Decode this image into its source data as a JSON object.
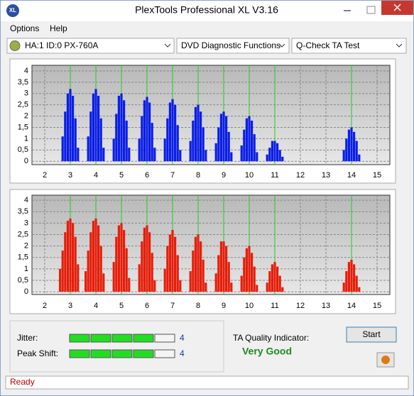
{
  "window": {
    "title": "PlexTools Professional XL V3.16",
    "logo": "XL"
  },
  "menu": [
    "Options",
    "Help"
  ],
  "dropdowns": [
    "HA:1 ID:0  PX-760A",
    "DVD Diagnostic Functions",
    "Q-Check TA Test"
  ],
  "charts": [
    {
      "type": "bar",
      "color": "#0a1ee6",
      "marker_color": "#22cc22",
      "xlim": [
        1.5,
        15.5
      ],
      "xticks": [
        2,
        3,
        4,
        5,
        6,
        7,
        8,
        9,
        10,
        11,
        12,
        13,
        14,
        15
      ],
      "ylim": [
        -0.15,
        4.25
      ],
      "yticks": [
        0,
        {
          "value": 0.5,
          "label": "0,5"
        },
        1,
        {
          "value": 1.5,
          "label": "1,5"
        },
        2,
        {
          "value": 2.5,
          "label": "2,5"
        },
        3,
        {
          "value": 3.5,
          "label": "3,5"
        },
        4
      ],
      "markers": [
        3,
        4,
        5,
        6,
        7,
        8,
        9,
        10,
        11,
        14
      ],
      "x": [
        2.7,
        2.8,
        2.9,
        3,
        3.1,
        3.2,
        3.3,
        3.7,
        3.8,
        3.9,
        4,
        4.1,
        4.2,
        4.3,
        4.7,
        4.8,
        4.9,
        5,
        5.1,
        5.2,
        5.3,
        5.7,
        5.8,
        5.9,
        6,
        6.1,
        6.2,
        6.3,
        6.7,
        6.8,
        6.9,
        7,
        7.1,
        7.2,
        7.3,
        7.7,
        7.8,
        7.9,
        8,
        8.1,
        8.2,
        8.3,
        8.7,
        8.8,
        8.9,
        9,
        9.1,
        9.2,
        9.3,
        9.7,
        9.8,
        9.9,
        10,
        10.1,
        10.2,
        10.3,
        10.7,
        10.8,
        10.9,
        11,
        11.1,
        11.2,
        11.3,
        13.7,
        13.8,
        13.9,
        14,
        14.1,
        14.2,
        14.3
      ],
      "values": [
        1.1,
        2.2,
        3.0,
        3.2,
        2.9,
        1.9,
        0.6,
        1.1,
        2.2,
        3.0,
        3.2,
        2.9,
        1.9,
        0.6,
        1.0,
        2.1,
        2.9,
        3.0,
        2.7,
        1.8,
        0.6,
        1.0,
        2.0,
        2.7,
        2.85,
        2.6,
        1.7,
        0.6,
        1.0,
        1.9,
        2.6,
        2.75,
        2.5,
        1.6,
        0.5,
        0.9,
        1.8,
        2.4,
        2.5,
        2.2,
        1.5,
        0.5,
        0.8,
        1.5,
        2.1,
        2.2,
        2.0,
        1.3,
        0.4,
        0.7,
        1.4,
        1.9,
        2.0,
        1.8,
        1.2,
        0.4,
        0.3,
        0.6,
        0.9,
        0.9,
        0.8,
        0.5,
        0.2,
        0.5,
        1.0,
        1.4,
        1.5,
        1.3,
        0.9,
        0.3
      ]
    },
    {
      "type": "bar",
      "color": "#e61e0a",
      "marker_color": "#22cc22",
      "xlim": [
        1.5,
        15.5
      ],
      "xticks": [
        2,
        3,
        4,
        5,
        6,
        7,
        8,
        9,
        10,
        11,
        12,
        13,
        14,
        15
      ],
      "ylim": [
        -0.12,
        4.22
      ],
      "yticks": [
        0,
        {
          "value": 0.5,
          "label": "0,5"
        },
        1,
        {
          "value": 1.5,
          "label": "1,5"
        },
        2,
        {
          "value": 2.5,
          "label": "2,5"
        },
        3,
        {
          "value": 3.5,
          "label": "3,5"
        },
        4
      ],
      "markers": [
        3,
        4,
        5,
        6,
        7,
        8,
        9,
        10,
        11,
        14
      ],
      "x": [
        2.6,
        2.7,
        2.8,
        2.9,
        3,
        3.1,
        3.2,
        3.3,
        3.6,
        3.7,
        3.8,
        3.9,
        4,
        4.1,
        4.2,
        4.3,
        4.7,
        4.8,
        4.9,
        5,
        5.1,
        5.2,
        5.3,
        5.7,
        5.8,
        5.9,
        6,
        6.1,
        6.2,
        6.3,
        6.7,
        6.8,
        6.9,
        7,
        7.1,
        7.2,
        7.3,
        7.7,
        7.8,
        7.9,
        8,
        8.1,
        8.2,
        8.3,
        8.7,
        8.8,
        8.9,
        9,
        9.1,
        9.2,
        9.3,
        9.7,
        9.8,
        9.9,
        10,
        10.1,
        10.2,
        10.3,
        10.7,
        10.8,
        10.9,
        11,
        11.1,
        11.2,
        11.3,
        13.7,
        13.8,
        13.9,
        14,
        14.1,
        14.2,
        14.3
      ],
      "values": [
        1.0,
        1.8,
        2.6,
        3.1,
        3.2,
        3.0,
        2.4,
        1.2,
        0.9,
        1.8,
        2.6,
        3.1,
        3.2,
        2.9,
        2.0,
        0.8,
        1.3,
        2.4,
        2.9,
        3.0,
        2.7,
        1.9,
        0.6,
        1.2,
        2.2,
        2.8,
        2.9,
        2.6,
        1.7,
        0.5,
        1.0,
        2.0,
        2.5,
        2.7,
        2.4,
        1.6,
        0.5,
        0.9,
        1.8,
        2.4,
        2.5,
        2.2,
        1.4,
        0.4,
        0.8,
        1.6,
        2.2,
        2.2,
        2.0,
        1.3,
        0.4,
        0.7,
        1.5,
        1.9,
        2.0,
        1.7,
        1.1,
        0.3,
        0.4,
        0.9,
        1.2,
        1.3,
        1.1,
        0.7,
        0.2,
        0.4,
        0.9,
        1.3,
        1.4,
        1.2,
        0.7,
        0.2
      ]
    }
  ],
  "metrics": [
    {
      "label": "Jitter:",
      "value": 4,
      "max": 5
    },
    {
      "label": "Peak Shift:",
      "value": 4,
      "max": 5
    }
  ],
  "quality": {
    "label": "TA Quality Indicator:",
    "value": "Very Good"
  },
  "buttons": {
    "start": "Start"
  },
  "status": "Ready"
}
